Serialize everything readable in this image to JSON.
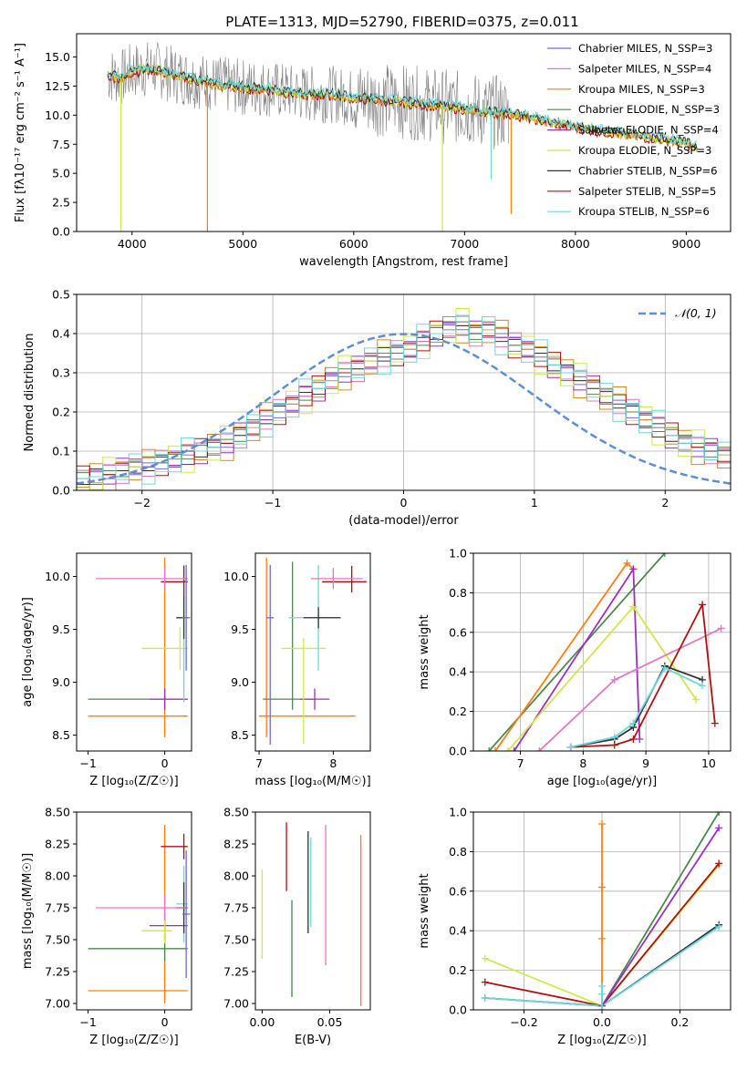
{
  "figure_title": "PLATE=1313, MJD=52790, FIBERID=0375, z=0.011",
  "colors": {
    "Chabrier MILES": "#6b6bd6",
    "Salpeter MILES": "#e377c2",
    "Kroupa MILES": "#d08a1e",
    "Chabrier ELODIE": "#4a8a4a",
    "Salpeter ELODIE": "#9b30c0",
    "Kroupa ELODIE": "#cfe84a",
    "Chabrier STELIB": "#333333",
    "Salpeter STELIB": "#b01010",
    "Kroupa STELIB": "#6cd6e0",
    "data": "#7f7f7f",
    "accent_orange": "#ff7f0e",
    "normal_curve": "#5b8fd6"
  },
  "chart_data": [
    {
      "type": "line",
      "title": "PLATE=1313, MJD=52790, FIBERID=0375, z=0.011",
      "xlabel": "wavelength [Angstrom, rest frame]",
      "ylabel": "Flux [fλ10⁻¹⁷ erg cm⁻² s⁻¹ A⁻¹]",
      "xlim": [
        3500,
        9400
      ],
      "ylim": [
        0,
        17
      ],
      "xticks": [
        4000,
        5000,
        6000,
        7000,
        8000,
        9000
      ],
      "yticks": [
        0.0,
        2.5,
        5.0,
        7.5,
        10.0,
        12.5,
        15.0
      ],
      "legend_position": "top-right",
      "grid": false,
      "legend": [
        "Chabrier MILES, N_SSP=3",
        "Salpeter MILES, N_SSP=4",
        "Kroupa MILES, N_SSP=3",
        "Chabrier ELODIE, N_SSP=3",
        "Salpeter ELODIE, N_SSP=4",
        "Kroupa ELODIE, N_SSP=3",
        "Chabrier STELIB, N_SSP=6",
        "Salpeter STELIB, N_SSP=5",
        "Kroupa STELIB, N_SSP=6"
      ],
      "legend_series": [
        "Chabrier MILES",
        "Salpeter MILES",
        "Kroupa MILES",
        "Chabrier ELODIE",
        "Salpeter ELODIE",
        "Kroupa ELODIE",
        "Chabrier STELIB",
        "Salpeter STELIB",
        "Kroupa STELIB"
      ],
      "continuum": {
        "x": [
          3780,
          3900,
          4000,
          4200,
          4400,
          4600,
          4800,
          5000,
          5200,
          5400,
          5600,
          5800,
          6000,
          6200,
          6400,
          6600,
          6800,
          7000,
          7200,
          7400,
          7600,
          7800,
          8000,
          8200,
          8400,
          8600,
          8800,
          9000,
          9100
        ],
        "y": [
          13.5,
          13.2,
          13.8,
          14.0,
          13.4,
          13.0,
          12.6,
          12.4,
          12.3,
          12.0,
          11.8,
          11.8,
          11.5,
          11.4,
          11.2,
          11.0,
          10.8,
          10.6,
          10.3,
          10.2,
          9.8,
          9.4,
          9.0,
          8.7,
          8.5,
          8.2,
          8.0,
          7.6,
          7.3
        ]
      },
      "data_noise_amplitude": 2.5,
      "spikes": [
        {
          "x": 3900,
          "y": 0.0,
          "series": "Kroupa ELODIE"
        },
        {
          "x": 4680,
          "y": 0.0,
          "series": "accent"
        },
        {
          "x": 6800,
          "y": 0.0,
          "series": "Kroupa ELODIE"
        },
        {
          "x": 7420,
          "y": 1.5,
          "series": "accent"
        },
        {
          "x": 7240,
          "y": 4.5,
          "series": "Kroupa STELIB"
        }
      ]
    },
    {
      "type": "bar",
      "xlabel": "(data-model)/error",
      "ylabel": "Normed distribution",
      "xlim": [
        -2.5,
        2.5
      ],
      "ylim": [
        0,
        0.5
      ],
      "xticks": [
        -2,
        -1,
        0,
        1,
        2
      ],
      "yticks": [
        0.0,
        0.1,
        0.2,
        0.3,
        0.4,
        0.5
      ],
      "grid": true,
      "legend_position": "top-right",
      "legend": [
        "𝒩(0, 1)"
      ],
      "bin_edges_start": -2.5,
      "bin_width": 0.1,
      "histogram_values": [
        0.03,
        0.035,
        0.04,
        0.05,
        0.06,
        0.06,
        0.07,
        0.08,
        0.09,
        0.1,
        0.11,
        0.12,
        0.14,
        0.16,
        0.18,
        0.2,
        0.22,
        0.24,
        0.26,
        0.28,
        0.3,
        0.31,
        0.33,
        0.34,
        0.35,
        0.36,
        0.38,
        0.4,
        0.41,
        0.42,
        0.4,
        0.41,
        0.39,
        0.37,
        0.36,
        0.34,
        0.32,
        0.3,
        0.28,
        0.26,
        0.24,
        0.22,
        0.2,
        0.18,
        0.16,
        0.14,
        0.12,
        0.11,
        0.1,
        0.09,
        0.08
      ],
      "histogram_jitter": [
        0.0,
        0.012,
        -0.01,
        0.015,
        -0.02,
        0.01,
        -0.015,
        0.02,
        0.0
      ]
    },
    {
      "type": "scatter",
      "xlabel": "Z [log₁₀(Z/Z☉)]",
      "ylabel": "age  [log₁₀(age/yr)]",
      "xlim": [
        -1.15,
        0.35
      ],
      "ylim": [
        8.35,
        10.22
      ],
      "xticks": [
        -1,
        0
      ],
      "yticks": [
        8.5,
        9.0,
        9.5,
        10.0
      ],
      "grid": false,
      "points": [
        {
          "series": "accent",
          "x": 0.0,
          "y": 8.68,
          "xerr": [
            1.0,
            0.3
          ],
          "yerr": [
            0.2,
            1.5
          ]
        },
        {
          "series": "Chabrier ELODIE",
          "x": 0.0,
          "y": 8.84,
          "xerr": [
            1.0,
            0.3
          ],
          "yerr": [
            0.1,
            0.1
          ]
        },
        {
          "series": "Salpeter ELODIE",
          "x": 0.0,
          "y": 8.84,
          "xerr": [
            0.2,
            0.3
          ],
          "yerr": [
            0.1,
            0.1
          ]
        },
        {
          "series": "Kroupa ELODIE",
          "x": 0.2,
          "y": 9.32,
          "xerr": [
            0.5,
            0.1
          ],
          "yerr": [
            0.2,
            0.2
          ]
        },
        {
          "series": "Kroupa STELIB",
          "x": 0.25,
          "y": 9.61,
          "xerr": [
            0.1,
            0.05
          ],
          "yerr": [
            0.8,
            0.5
          ]
        },
        {
          "series": "Chabrier STELIB",
          "x": 0.25,
          "y": 9.61,
          "xerr": [
            0.1,
            0.05
          ],
          "yerr": [
            0.2,
            0.2
          ]
        },
        {
          "series": "Salpeter STELIB",
          "x": 0.25,
          "y": 9.95,
          "xerr": [
            0.3,
            0.05
          ],
          "yerr": [
            0.15,
            0.15
          ]
        },
        {
          "series": "Salpeter MILES",
          "x": 0.0,
          "y": 9.98,
          "xerr": [
            0.9,
            0.3
          ],
          "yerr": [
            0.1,
            0.1
          ]
        },
        {
          "series": "Chabrier MILES",
          "x": 0.28,
          "y": 9.61,
          "xerr": [
            0.05,
            0.05
          ],
          "yerr": [
            0.5,
            0.5
          ]
        }
      ]
    },
    {
      "type": "scatter",
      "xlabel": "mass [log₁₀(M/M☉)]",
      "ylabel": "",
      "xlim": [
        6.95,
        8.5
      ],
      "ylim": [
        8.35,
        10.22
      ],
      "xticks": [
        7,
        8
      ],
      "yticks": [
        8.5,
        9.0,
        9.5,
        10.0
      ],
      "grid": false,
      "points": [
        {
          "series": "accent",
          "x": 7.1,
          "y": 8.68,
          "xerr": [
            0.1,
            1.2
          ],
          "yerr": [
            0.2,
            1.5
          ]
        },
        {
          "series": "Chabrier ELODIE",
          "x": 7.45,
          "y": 8.84,
          "xerr": [
            0.4,
            0.3
          ],
          "yerr": [
            0.1,
            1.3
          ]
        },
        {
          "series": "Salpeter ELODIE",
          "x": 7.75,
          "y": 8.84,
          "xerr": [
            0.2,
            0.2
          ],
          "yerr": [
            0.1,
            0.1
          ]
        },
        {
          "series": "Kroupa ELODIE",
          "x": 7.6,
          "y": 9.32,
          "xerr": [
            0.3,
            0.3
          ],
          "yerr": [
            0.9,
            0.1
          ]
        },
        {
          "series": "Kroupa STELIB",
          "x": 7.8,
          "y": 9.61,
          "xerr": [
            0.4,
            0.3
          ],
          "yerr": [
            0.5,
            0.5
          ]
        },
        {
          "series": "Chabrier STELIB",
          "x": 7.8,
          "y": 9.61,
          "xerr": [
            0.2,
            0.3
          ],
          "yerr": [
            0.1,
            0.1
          ]
        },
        {
          "series": "Salpeter STELIB",
          "x": 8.25,
          "y": 9.95,
          "xerr": [
            0.4,
            0.2
          ],
          "yerr": [
            0.1,
            0.15
          ]
        },
        {
          "series": "Salpeter MILES",
          "x": 8.0,
          "y": 9.98,
          "xerr": [
            0.3,
            0.4
          ],
          "yerr": [
            0.1,
            0.1
          ]
        },
        {
          "series": "Chabrier MILES",
          "x": 7.15,
          "y": 9.61,
          "xerr": [
            0.05,
            0.05
          ],
          "yerr": [
            1.2,
            0.5
          ]
        }
      ]
    },
    {
      "type": "line",
      "xlabel": "age  [log₁₀(age/yr)]",
      "ylabel": "mass weight",
      "xlim": [
        6.25,
        10.35
      ],
      "ylim": [
        0,
        1
      ],
      "xticks": [
        7,
        8,
        9,
        10
      ],
      "yticks": [
        0.0,
        0.2,
        0.4,
        0.6,
        0.8,
        1.0
      ],
      "grid": true,
      "series": [
        {
          "name": "Chabrier ELODIE",
          "x": [
            6.5,
            9.3
          ],
          "y": [
            0.0,
            1.0
          ]
        },
        {
          "name": "accent",
          "x": [
            6.6,
            8.7,
            8.8
          ],
          "y": [
            0.0,
            0.95,
            0.92
          ]
        },
        {
          "name": "Salpeter ELODIE",
          "x": [
            6.9,
            8.8,
            8.9
          ],
          "y": [
            0.0,
            0.92,
            0.06
          ]
        },
        {
          "name": "Kroupa ELODIE",
          "x": [
            6.8,
            8.8,
            9.8
          ],
          "y": [
            0.0,
            0.73,
            0.26
          ]
        },
        {
          "name": "Salpeter MILES",
          "x": [
            7.3,
            8.5,
            10.2
          ],
          "y": [
            0.0,
            0.36,
            0.62
          ]
        },
        {
          "name": "Salpeter STELIB",
          "x": [
            7.8,
            8.5,
            8.8,
            9.9,
            10.1
          ],
          "y": [
            0.02,
            0.03,
            0.06,
            0.74,
            0.14
          ]
        },
        {
          "name": "Chabrier STELIB",
          "x": [
            7.8,
            8.5,
            8.8,
            9.3,
            9.9
          ],
          "y": [
            0.02,
            0.06,
            0.12,
            0.43,
            0.36
          ]
        },
        {
          "name": "Kroupa STELIB",
          "x": [
            7.8,
            8.5,
            8.8,
            9.3,
            9.9
          ],
          "y": [
            0.02,
            0.07,
            0.14,
            0.42,
            0.33
          ]
        }
      ]
    },
    {
      "type": "scatter",
      "xlabel": "Z [log₁₀(Z/Z☉)]",
      "ylabel": "mass [log₁₀(M/M☉)]",
      "xlim": [
        -1.15,
        0.35
      ],
      "ylim": [
        6.95,
        8.5
      ],
      "xticks": [
        -1,
        0
      ],
      "yticks": [
        7.0,
        7.25,
        7.5,
        7.75,
        8.0,
        8.25,
        8.5
      ],
      "grid": false,
      "points": [
        {
          "series": "accent",
          "x": 0.0,
          "y": 7.1,
          "xerr": [
            1.0,
            0.3
          ],
          "yerr": [
            0.1,
            1.3
          ]
        },
        {
          "series": "Chabrier ELODIE",
          "x": 0.0,
          "y": 7.43,
          "xerr": [
            1.0,
            0.3
          ],
          "yerr": [
            0.1,
            0.1
          ]
        },
        {
          "series": "Salpeter ELODIE",
          "x": 0.0,
          "y": 7.61,
          "xerr": [
            0.2,
            0.3
          ],
          "yerr": [
            0.1,
            0.1
          ]
        },
        {
          "series": "Kroupa ELODIE",
          "x": 0.0,
          "y": 7.57,
          "xerr": [
            0.3,
            0.1
          ],
          "yerr": [
            0.1,
            0.1
          ]
        },
        {
          "series": "Kroupa STELIB",
          "x": 0.25,
          "y": 7.78,
          "xerr": [
            0.1,
            0.05
          ],
          "yerr": [
            0.3,
            0.3
          ]
        },
        {
          "series": "Chabrier STELIB",
          "x": 0.25,
          "y": 7.75,
          "xerr": [
            0.1,
            0.05
          ],
          "yerr": [
            0.2,
            0.2
          ]
        },
        {
          "series": "Salpeter STELIB",
          "x": 0.25,
          "y": 8.23,
          "xerr": [
            0.3,
            0.05
          ],
          "yerr": [
            0.1,
            0.1
          ]
        },
        {
          "series": "Salpeter MILES",
          "x": 0.0,
          "y": 7.75,
          "xerr": [
            0.9,
            0.3
          ],
          "yerr": [
            0.1,
            0.1
          ]
        },
        {
          "series": "Chabrier MILES",
          "x": 0.28,
          "y": 7.7,
          "xerr": [
            0.05,
            0.05
          ],
          "yerr": [
            0.5,
            0.5
          ]
        }
      ]
    },
    {
      "type": "scatter",
      "xlabel": "E(B-V)",
      "ylabel": "",
      "xlim": [
        -0.005,
        0.08
      ],
      "ylim": [
        6.95,
        8.5
      ],
      "xticks": [
        0.0,
        0.05
      ],
      "yticks": [
        7.0,
        7.25,
        7.5,
        7.75,
        8.0,
        8.25,
        8.5
      ],
      "grid": false,
      "points": [
        {
          "series": "Kroupa ELODIE",
          "x": 0.0,
          "y": 7.7,
          "yerr": [
            0.35,
            0.35
          ]
        },
        {
          "series": "Salpeter STELIB",
          "x": 0.018,
          "y": 8.15,
          "yerr": [
            0.27,
            0.27
          ]
        },
        {
          "series": "Chabrier ELODIE",
          "x": 0.022,
          "y": 7.43,
          "yerr": [
            0.38,
            0.38
          ]
        },
        {
          "series": "Chabrier STELIB",
          "x": 0.034,
          "y": 7.95,
          "yerr": [
            0.4,
            0.4
          ]
        },
        {
          "series": "Kroupa STELIB",
          "x": 0.036,
          "y": 7.95,
          "yerr": [
            0.35,
            0.35
          ]
        },
        {
          "series": "Salpeter MILES",
          "x": 0.047,
          "y": 7.85,
          "yerr": [
            0.55,
            0.55
          ]
        },
        {
          "series": "accent",
          "x": 0.073,
          "y": 7.65,
          "yerr": [
            0.67,
            0.67
          ]
        }
      ]
    },
    {
      "type": "line",
      "xlabel": "Z [log₁₀(Z/Z☉)]",
      "ylabel": "mass weight",
      "xlim": [
        -0.33,
        0.33
      ],
      "ylim": [
        0,
        1
      ],
      "xticks": [
        -0.2,
        0.0,
        0.2
      ],
      "yticks": [
        0.0,
        0.2,
        0.4,
        0.6,
        0.8,
        1.0
      ],
      "grid": true,
      "series": [
        {
          "name": "Kroupa ELODIE",
          "x": [
            -0.3,
            0.0,
            0.3
          ],
          "y": [
            0.26,
            0.02,
            0.73
          ]
        },
        {
          "name": "Salpeter STELIB",
          "x": [
            -0.3,
            0.0,
            0.3
          ],
          "y": [
            0.14,
            0.02,
            0.74
          ]
        },
        {
          "name": "Chabrier STELIB",
          "x": [
            -0.3,
            0.0,
            0.3
          ],
          "y": [
            0.06,
            0.02,
            0.43
          ]
        },
        {
          "name": "Kroupa STELIB",
          "x": [
            -0.3,
            0.0,
            0.3
          ],
          "y": [
            0.06,
            0.02,
            0.42
          ]
        },
        {
          "name": "Chabrier ELODIE",
          "x": [
            0.0,
            0.3
          ],
          "y": [
            0.02,
            1.0
          ]
        },
        {
          "name": "Salpeter ELODIE",
          "x": [
            0.0,
            0.3
          ],
          "y": [
            0.02,
            0.92
          ]
        }
      ],
      "vertical_points": [
        {
          "series": "accent",
          "x": 0.0,
          "y": [
            0.0,
            0.36,
            0.62,
            0.94
          ]
        },
        {
          "series": "Kroupa STELIB",
          "x": 0.0,
          "y": [
            0.0,
            0.08,
            0.12
          ]
        }
      ]
    }
  ]
}
